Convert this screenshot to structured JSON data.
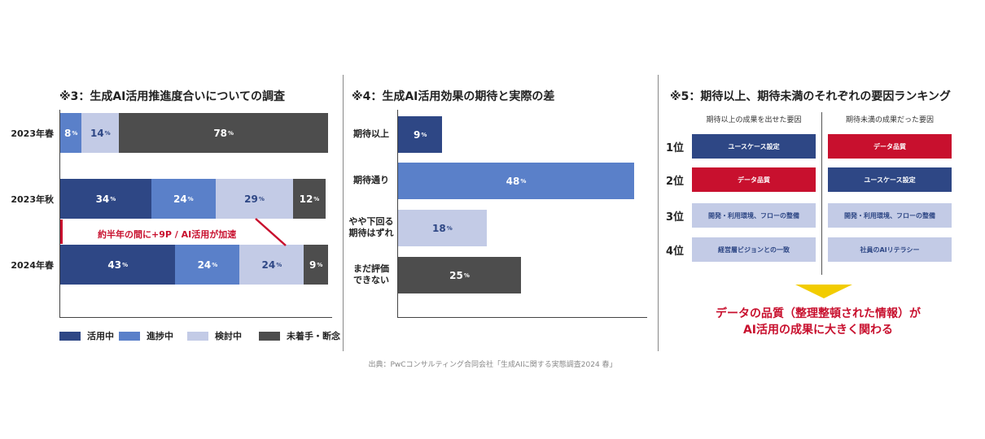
{
  "colors": {
    "katsuyo": "#2e4785",
    "shincho": "#5a80c9",
    "kento": "#c3cbe6",
    "mitchaku": "#4d4d4d",
    "accent_red": "#c8102e",
    "arrow_yellow": "#f2cc00"
  },
  "chart_data": [
    {
      "type": "bar",
      "orientation": "horizontal",
      "stacked": true,
      "title": "※3：生成AI活用推進度合いについての調査",
      "categories": [
        "2023年春",
        "2023年秋",
        "2024年春"
      ],
      "series": [
        {
          "name": "活用中",
          "values": [
            0,
            34,
            43
          ]
        },
        {
          "name": "進捗中",
          "values": [
            8,
            24,
            24
          ]
        },
        {
          "name": "検討中",
          "values": [
            14,
            29,
            24
          ]
        },
        {
          "name": "未着手・断念",
          "values": [
            78,
            12,
            9
          ]
        }
      ],
      "value_unit": "%",
      "legend": "bottom",
      "annotation": "約半年の間に+9P / AI活用が加速"
    },
    {
      "type": "bar",
      "orientation": "horizontal",
      "title": "※4：生成AI活用効果の期待と実際の差",
      "categories": [
        "期待以上",
        "期待通り",
        "やや下回る\n期待はずれ",
        "まだ評価\nできない"
      ],
      "values": [
        9,
        48,
        18,
        25
      ],
      "value_unit": "%"
    }
  ],
  "ranking": {
    "title": "※5：期待以上、期待未満のそれぞれの要因ランキング",
    "col_left_header": "期待以上の成果を出せた要因",
    "col_right_header": "期待未満の成果だった要因",
    "ranks": [
      "1位",
      "2位",
      "3位",
      "4位"
    ],
    "left_items": [
      "ユースケース設定",
      "データ品質",
      "開発・利用環境、フローの整備",
      "経営層ビジョンとの一致"
    ],
    "right_items": [
      "データ品質",
      "ユースケース設定",
      "開発・利用環境、フローの整備",
      "社員のAIリテラシー"
    ],
    "conclusion_line1": "データの品質（整理整頓された情報）が",
    "conclusion_line2": "AI活用の成果に大きく関わる"
  },
  "source": "出典：PwCコンサルティング合同会社「生成AIに関する実態調査2024 春」"
}
